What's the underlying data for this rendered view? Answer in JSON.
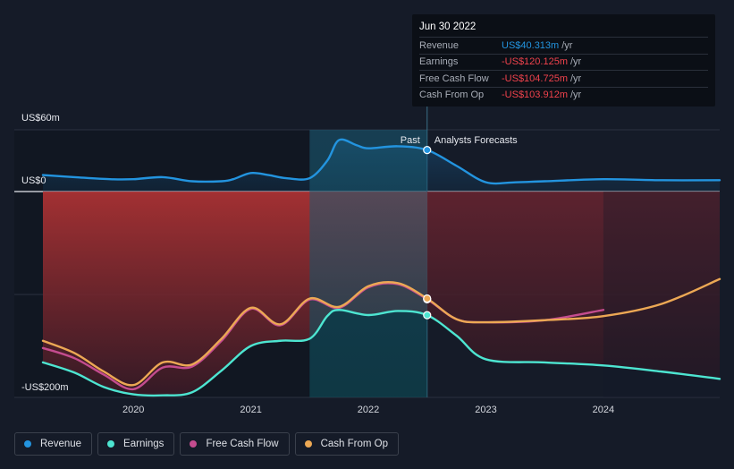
{
  "chart_data": {
    "type": "line",
    "y_axis": {
      "top_label": "US$60m",
      "zero_label": "US$0",
      "bottom_label": "-US$200m",
      "ylim": [
        -200,
        60
      ]
    },
    "x_ticks": [
      {
        "label": "2020",
        "x": 2020.0
      },
      {
        "label": "2021",
        "x": 2021.0
      },
      {
        "label": "2022",
        "x": 2022.0
      },
      {
        "label": "2023",
        "x": 2023.0
      },
      {
        "label": "2024",
        "x": 2024.0
      }
    ],
    "xlim": [
      2019.23,
      2024.99
    ],
    "past_label": "Past",
    "forecast_label": "Analysts Forecasts",
    "past_end": 2022.5,
    "highlight_start": 2021.5,
    "series": [
      {
        "name": "Revenue",
        "color": "#2394df",
        "points": [
          [
            2019.23,
            16
          ],
          [
            2019.5,
            14
          ],
          [
            2019.8,
            12
          ],
          [
            2020.0,
            12
          ],
          [
            2020.25,
            14
          ],
          [
            2020.5,
            10
          ],
          [
            2020.75,
            10
          ],
          [
            2020.85,
            12
          ],
          [
            2021.0,
            18
          ],
          [
            2021.15,
            16
          ],
          [
            2021.3,
            13
          ],
          [
            2021.5,
            13
          ],
          [
            2021.65,
            30
          ],
          [
            2021.75,
            50
          ],
          [
            2021.9,
            45
          ],
          [
            2022.0,
            42
          ],
          [
            2022.25,
            44
          ],
          [
            2022.5,
            40.3
          ],
          [
            2022.75,
            25
          ],
          [
            2023.0,
            9
          ],
          [
            2023.25,
            9
          ],
          [
            2023.5,
            10
          ],
          [
            2024.0,
            12
          ],
          [
            2024.5,
            11
          ],
          [
            2024.99,
            11
          ]
        ]
      },
      {
        "name": "Earnings",
        "color": "#4de5d1",
        "points": [
          [
            2019.23,
            -166
          ],
          [
            2019.5,
            -176
          ],
          [
            2019.75,
            -190
          ],
          [
            2020.0,
            -197
          ],
          [
            2020.25,
            -198
          ],
          [
            2020.5,
            -195
          ],
          [
            2020.75,
            -174
          ],
          [
            2021.0,
            -150
          ],
          [
            2021.25,
            -145
          ],
          [
            2021.5,
            -143
          ],
          [
            2021.65,
            -121
          ],
          [
            2021.75,
            -115
          ],
          [
            2022.0,
            -120
          ],
          [
            2022.25,
            -116
          ],
          [
            2022.5,
            -120.1
          ],
          [
            2022.75,
            -140
          ],
          [
            2023.0,
            -163
          ],
          [
            2023.5,
            -166
          ],
          [
            2024.0,
            -169
          ],
          [
            2024.5,
            -175
          ],
          [
            2024.99,
            -182
          ]
        ]
      },
      {
        "name": "Free Cash Flow",
        "color": "#c44c8f",
        "points": [
          [
            2019.23,
            -152
          ],
          [
            2019.5,
            -162
          ],
          [
            2019.75,
            -178
          ],
          [
            2020.0,
            -192
          ],
          [
            2020.25,
            -171
          ],
          [
            2020.5,
            -170
          ],
          [
            2020.75,
            -145
          ],
          [
            2021.0,
            -114
          ],
          [
            2021.25,
            -130
          ],
          [
            2021.5,
            -105
          ],
          [
            2021.75,
            -113
          ],
          [
            2022.0,
            -93
          ],
          [
            2022.25,
            -90
          ],
          [
            2022.5,
            -104.7
          ],
          [
            2022.75,
            -124
          ],
          [
            2023.0,
            -127
          ],
          [
            2023.5,
            -125
          ],
          [
            2024.0,
            -115
          ]
        ]
      },
      {
        "name": "Cash From Op",
        "color": "#eca854",
        "points": [
          [
            2019.23,
            -145
          ],
          [
            2019.5,
            -157
          ],
          [
            2019.75,
            -175
          ],
          [
            2020.0,
            -188
          ],
          [
            2020.25,
            -166
          ],
          [
            2020.5,
            -168
          ],
          [
            2020.75,
            -143
          ],
          [
            2021.0,
            -113
          ],
          [
            2021.25,
            -129
          ],
          [
            2021.5,
            -104
          ],
          [
            2021.75,
            -112
          ],
          [
            2022.0,
            -92
          ],
          [
            2022.25,
            -89
          ],
          [
            2022.5,
            -103.9
          ],
          [
            2022.75,
            -124
          ],
          [
            2023.0,
            -127
          ],
          [
            2023.5,
            -125
          ],
          [
            2024.0,
            -121
          ],
          [
            2024.5,
            -109
          ],
          [
            2024.99,
            -85
          ]
        ]
      }
    ]
  },
  "tooltip": {
    "date": "Jun 30 2022",
    "rows": [
      {
        "label": "Revenue",
        "value": "US$40.313m",
        "unit": "/yr",
        "color": "#2394df"
      },
      {
        "label": "Earnings",
        "value": "-US$120.125m",
        "unit": "/yr",
        "color": "#f0424c"
      },
      {
        "label": "Free Cash Flow",
        "value": "-US$104.725m",
        "unit": "/yr",
        "color": "#f0424c"
      },
      {
        "label": "Cash From Op",
        "value": "-US$103.912m",
        "unit": "/yr",
        "color": "#f0424c"
      }
    ]
  },
  "legend": [
    {
      "label": "Revenue",
      "color": "#2394df"
    },
    {
      "label": "Earnings",
      "color": "#4de5d1"
    },
    {
      "label": "Free Cash Flow",
      "color": "#c44c8f"
    },
    {
      "label": "Cash From Op",
      "color": "#eca854"
    }
  ]
}
